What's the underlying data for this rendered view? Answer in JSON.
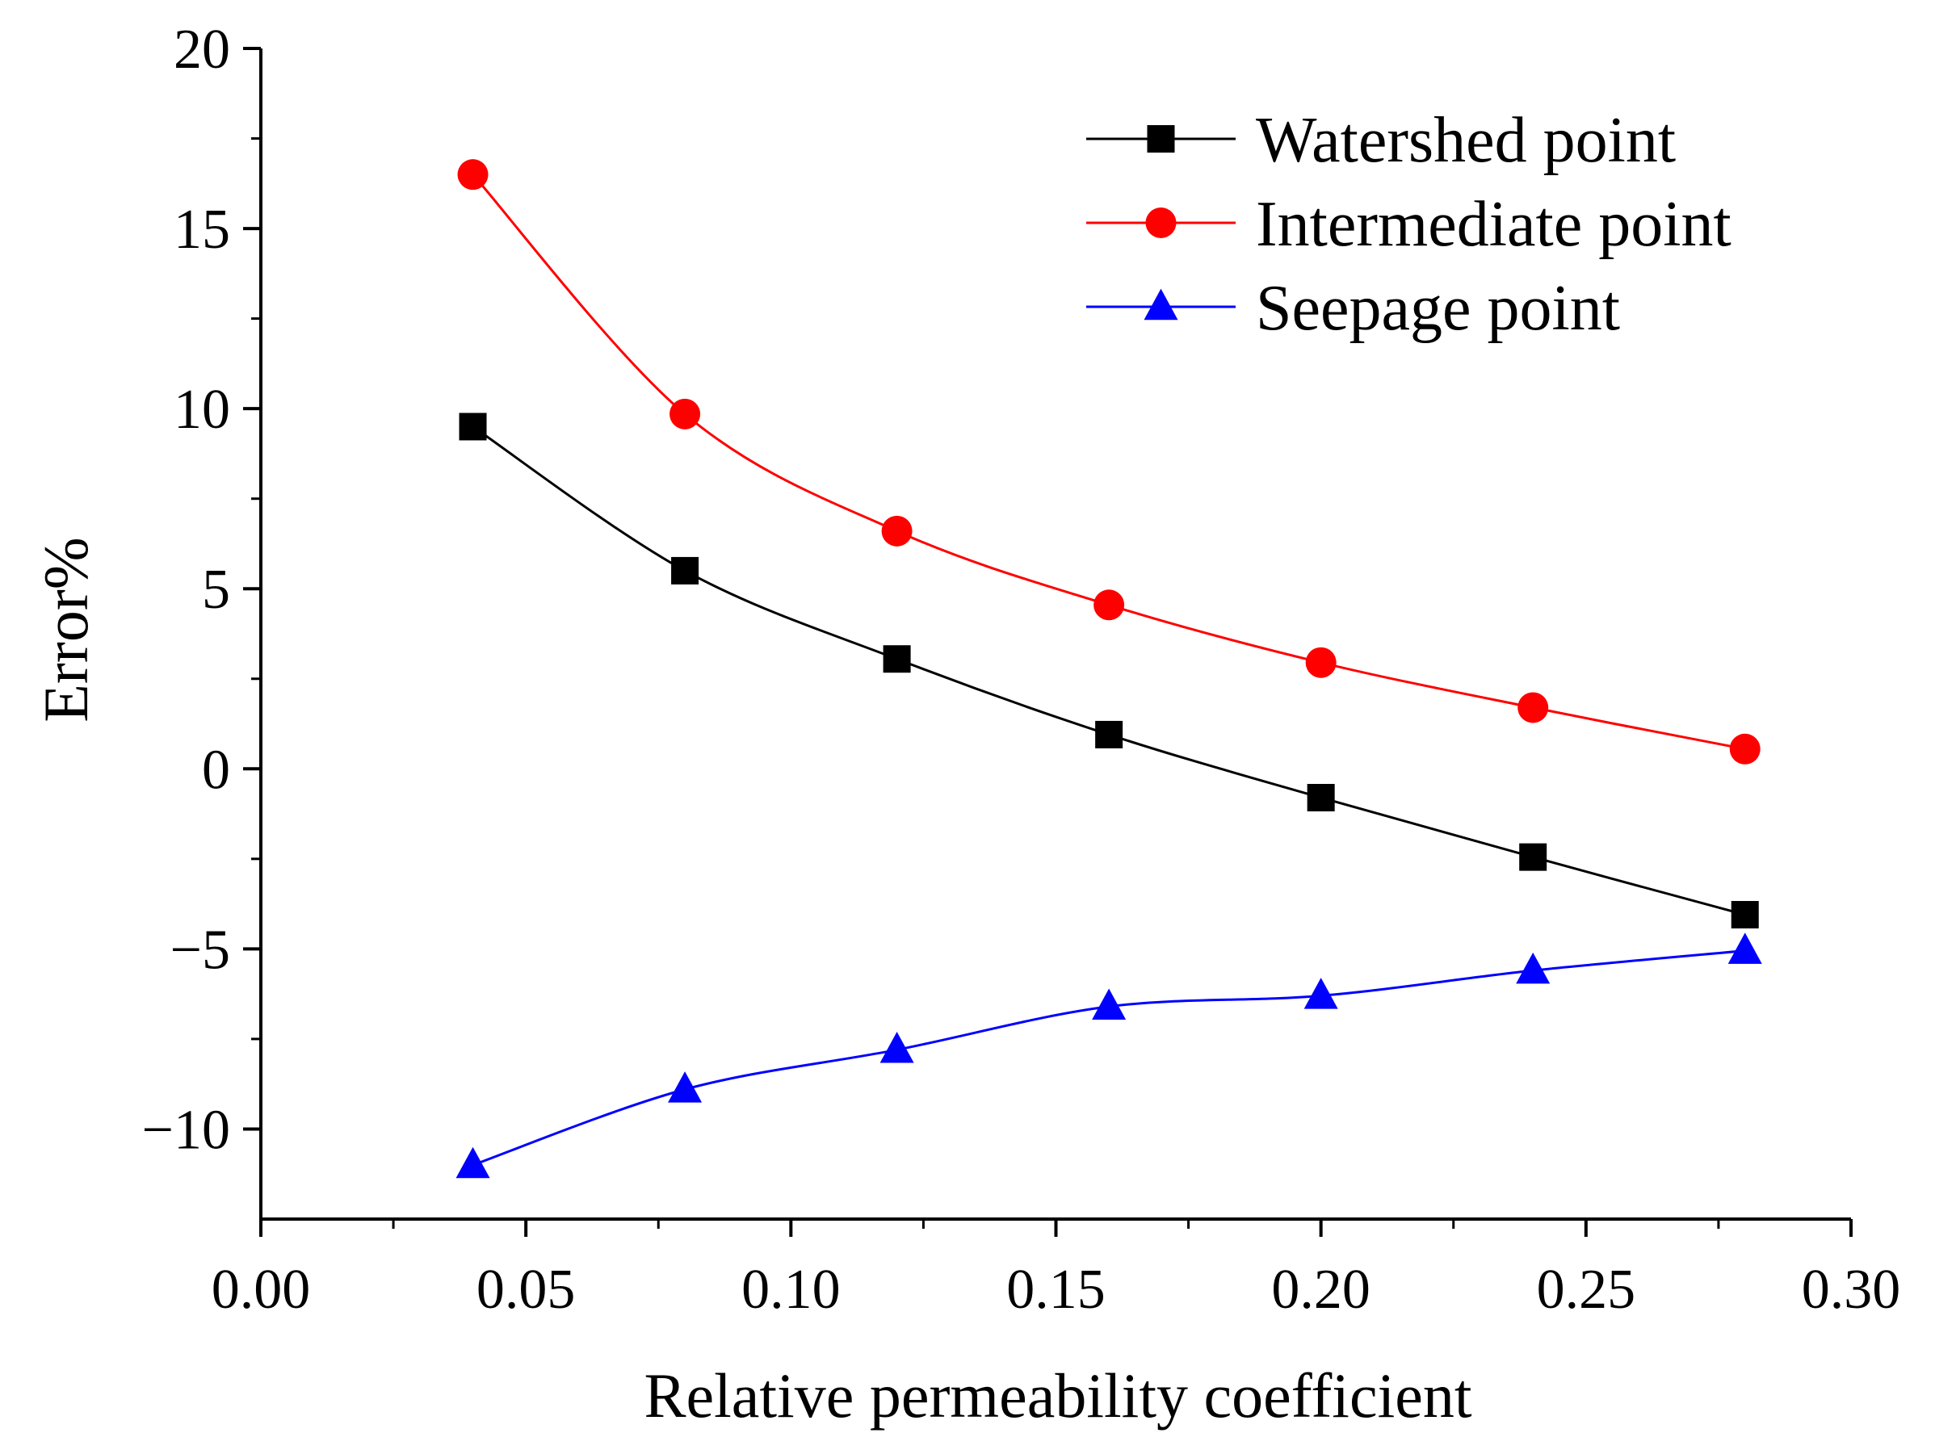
{
  "chart_data": {
    "type": "line",
    "title": "",
    "xlabel": "Relative permeability coefficient",
    "ylabel": "Error%",
    "xlim": [
      0.0,
      0.3
    ],
    "ylim": [
      -12.5,
      20
    ],
    "xticks": [
      0.0,
      0.05,
      0.1,
      0.15,
      0.2,
      0.25,
      0.3
    ],
    "xtick_labels": [
      "0.00",
      "0.05",
      "0.10",
      "0.15",
      "0.20",
      "0.25",
      "0.30"
    ],
    "yticks": [
      -10,
      -5,
      0,
      5,
      10,
      15,
      20
    ],
    "ytick_labels": [
      "−10",
      "−5",
      "0",
      "5",
      "10",
      "15",
      "20"
    ],
    "grid": false,
    "legend_position": "top-right",
    "x": [
      0.04,
      0.08,
      0.12,
      0.16,
      0.2,
      0.24,
      0.28
    ],
    "series": [
      {
        "name": "Watershed point",
        "color": "#000000",
        "marker": "square",
        "values": [
          9.5,
          5.5,
          3.05,
          0.95,
          -0.8,
          -2.45,
          -4.05
        ]
      },
      {
        "name": "Intermediate point",
        "color": "#ff0000",
        "marker": "circle",
        "values": [
          16.5,
          9.85,
          6.6,
          4.55,
          2.95,
          1.7,
          0.55
        ]
      },
      {
        "name": "Seepage point",
        "color": "#0000ff",
        "marker": "triangle",
        "values": [
          -11.0,
          -8.9,
          -7.8,
          -6.6,
          -6.3,
          -5.6,
          -5.05
        ]
      }
    ]
  }
}
